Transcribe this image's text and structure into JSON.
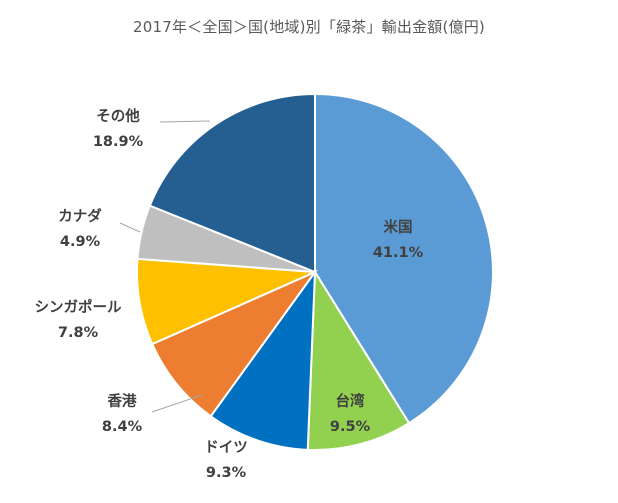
{
  "chart_data": {
    "type": "pie",
    "title": "2017年＜全国＞国(地域)別「緑茶」輸出金額(億円)",
    "unit": "%",
    "slices": [
      {
        "label": "米国",
        "value": 41.1,
        "value_text": "41.1%",
        "color": "#5B9BD5"
      },
      {
        "label": "台湾",
        "value": 9.5,
        "value_text": "9.5%",
        "color": "#92D050"
      },
      {
        "label": "ドイツ",
        "value": 9.3,
        "value_text": "9.3%",
        "color": "#0070C0"
      },
      {
        "label": "香港",
        "value": 8.4,
        "value_text": "8.4%",
        "color": "#ED7D31"
      },
      {
        "label": "シンガポール",
        "value": 7.8,
        "value_text": "7.8%",
        "color": "#FFC000"
      },
      {
        "label": "カナダ",
        "value": 4.9,
        "value_text": "4.9%",
        "color": "#BFBFBF"
      },
      {
        "label": "その他",
        "value": 18.9,
        "value_text": "18.9%",
        "color": "#255E91"
      }
    ],
    "start_angle": "12 o'clock",
    "direction": "clockwise",
    "legend": "none",
    "label_color": "#404040"
  }
}
